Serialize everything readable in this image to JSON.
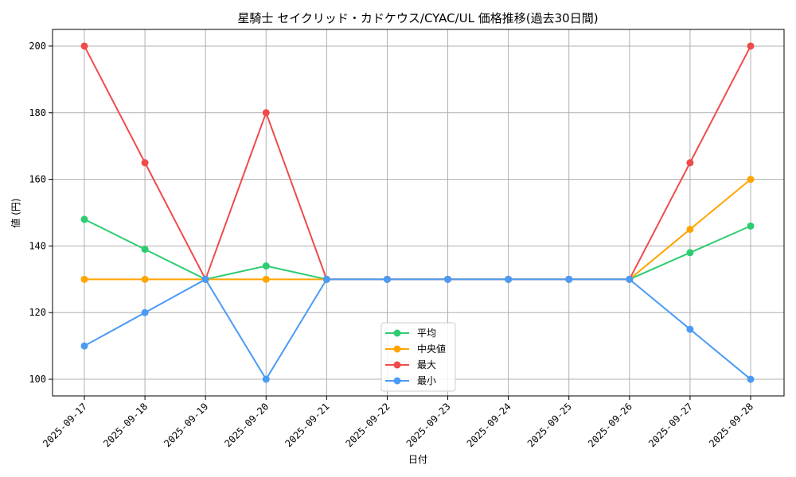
{
  "chart_data": {
    "type": "line",
    "title": "星騎士 セイクリッド・カドケウス/CYAC/UL 価格推移(過去30日間)",
    "xlabel": "日付",
    "ylabel": "値 (円)",
    "categories": [
      "2025-09-17",
      "2025-09-18",
      "2025-09-19",
      "2025-09-20",
      "2025-09-21",
      "2025-09-22",
      "2025-09-23",
      "2025-09-24",
      "2025-09-25",
      "2025-09-26",
      "2025-09-27",
      "2025-09-28"
    ],
    "ylim": [
      95,
      205
    ],
    "yticks": [
      100,
      120,
      140,
      160,
      180,
      200
    ],
    "grid": true,
    "legend_position": "bottom-center",
    "series": [
      {
        "name": "平均",
        "color": "#2ecc71",
        "values": [
          148,
          139,
          130,
          134,
          130,
          130,
          130,
          130,
          130,
          130,
          138,
          146
        ]
      },
      {
        "name": "中央値",
        "color": "#ffa500",
        "values": [
          130,
          130,
          130,
          130,
          130,
          130,
          130,
          130,
          130,
          130,
          145,
          160
        ]
      },
      {
        "name": "最大",
        "color": "#ef4b4b",
        "values": [
          200,
          165,
          130,
          180,
          130,
          130,
          130,
          130,
          130,
          130,
          165,
          200
        ]
      },
      {
        "name": "最小",
        "color": "#4b9bf5",
        "values": [
          110,
          120,
          130,
          100,
          130,
          130,
          130,
          130,
          130,
          130,
          115,
          100
        ]
      }
    ]
  }
}
